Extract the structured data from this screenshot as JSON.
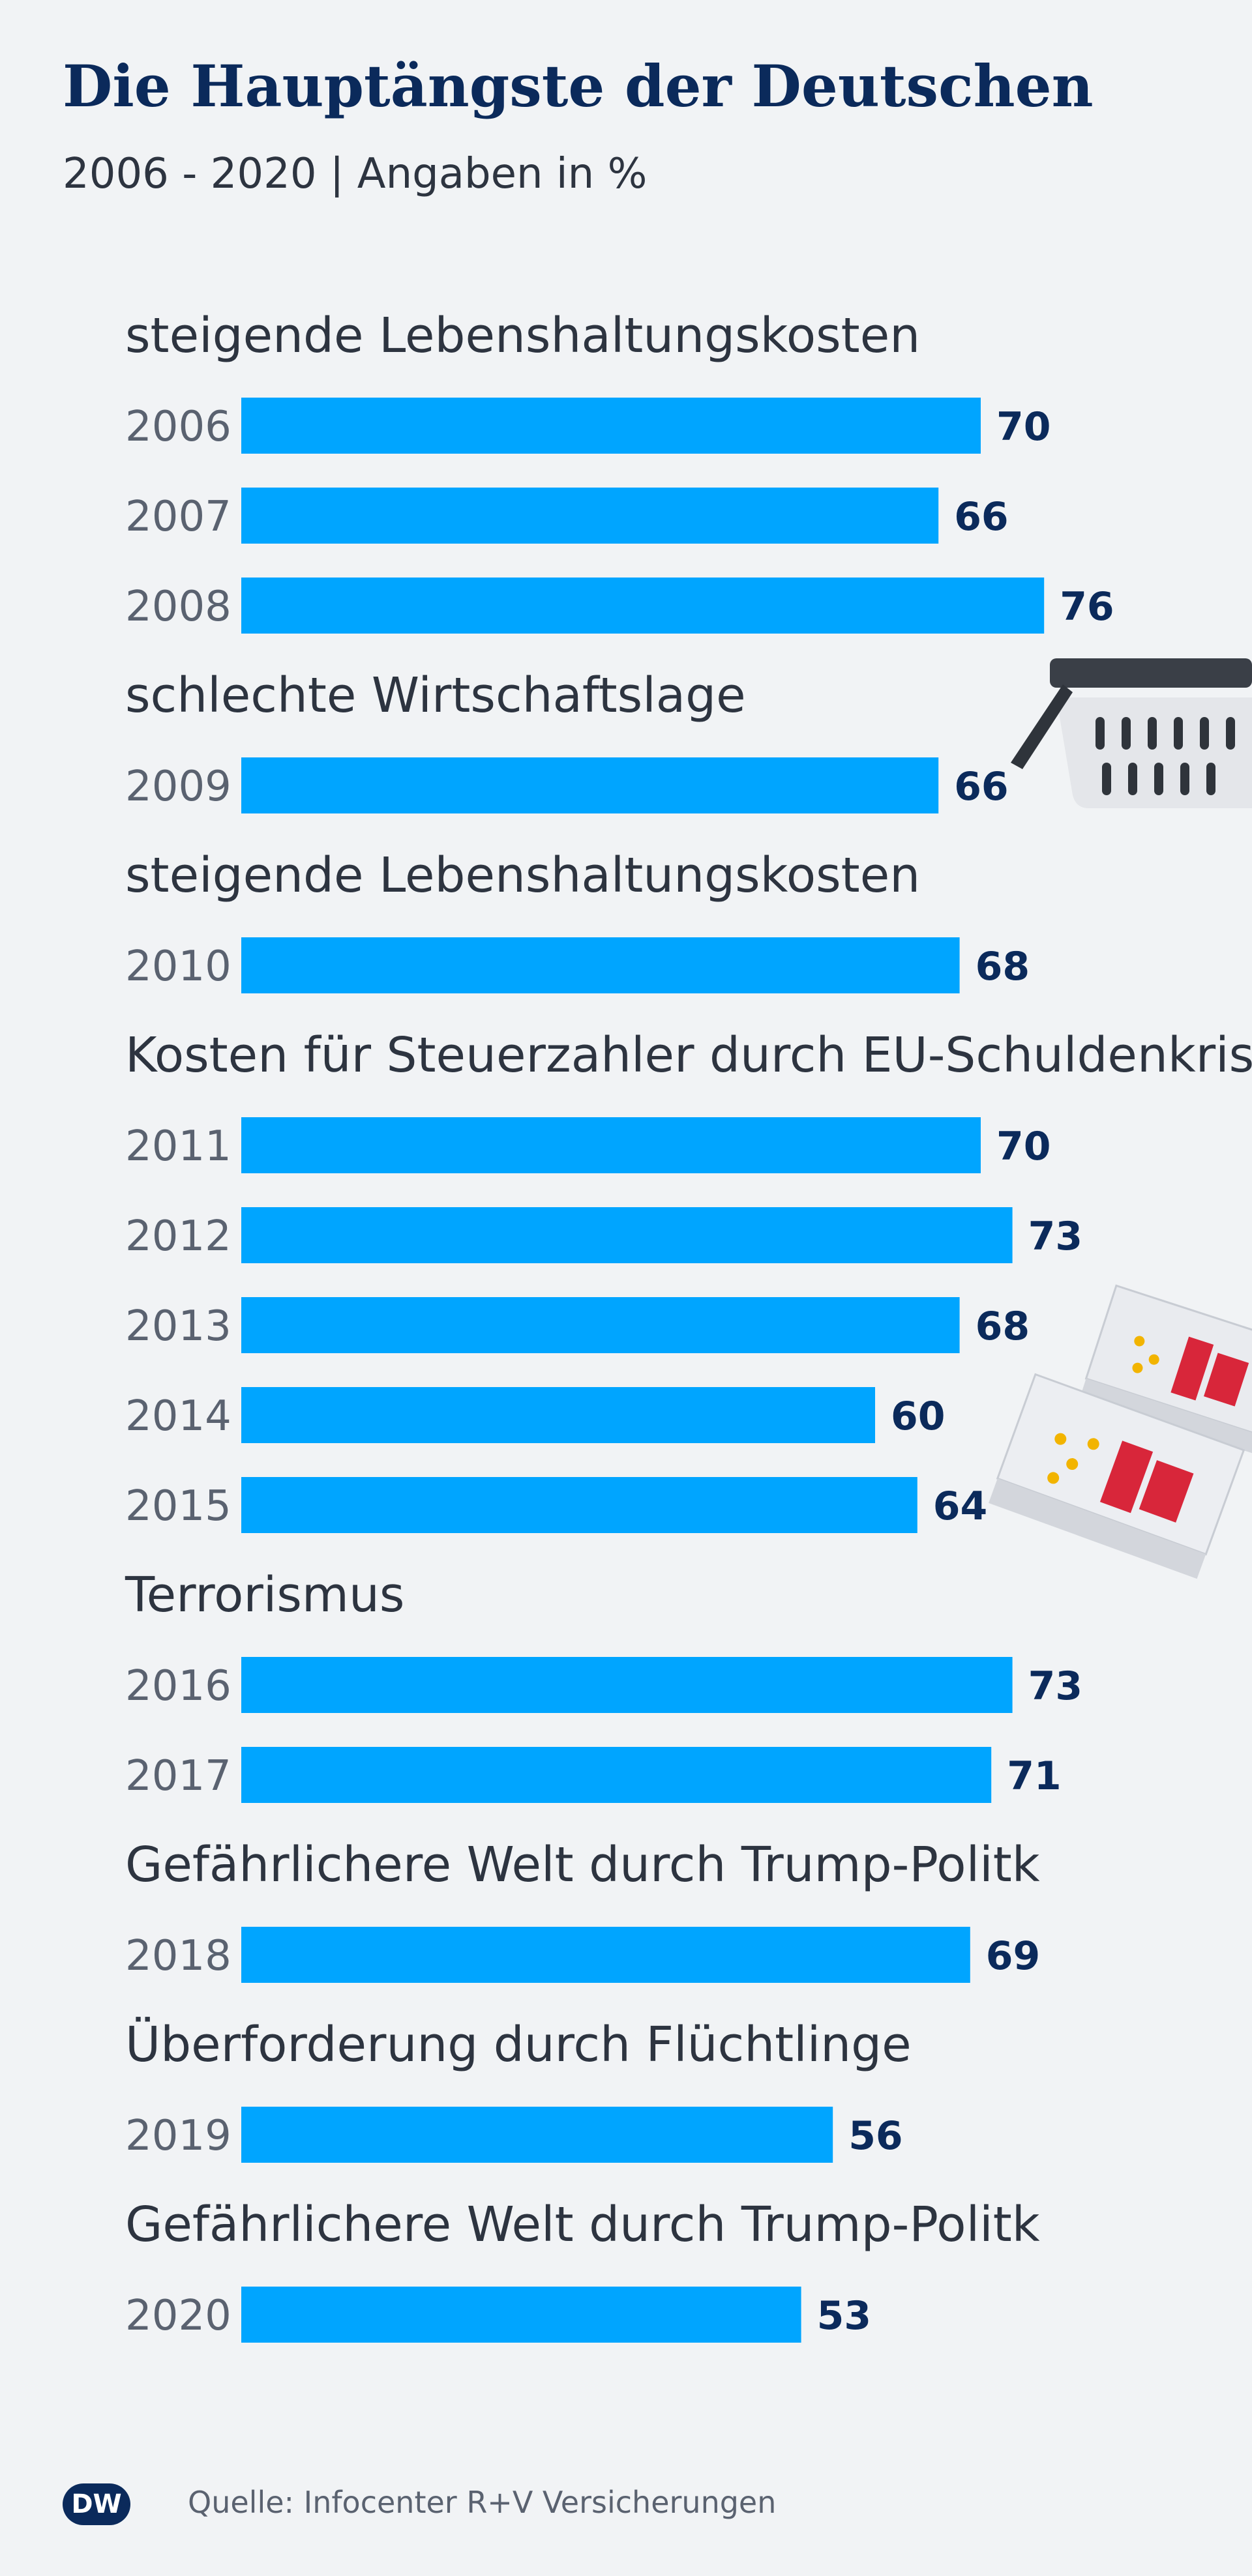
{
  "title": "Die Hauptängste der Deutschen",
  "subtitle": "2006 - 2020 | Angaben in %",
  "source": "Quelle: Infocenter R+V Versicherungen",
  "logo": "DW",
  "colors": {
    "bar": "#00a5ff",
    "title": "#0b2a5b",
    "background": "#f1f3f5"
  },
  "chart_data": {
    "type": "bar",
    "orientation": "horizontal",
    "title": "Die Hauptängste der Deutschen",
    "unit": "%",
    "xlim": [
      0,
      100
    ],
    "groups": [
      {
        "label": "steigende Lebenshaltungskosten",
        "rows": [
          {
            "year": "2006",
            "value": 70
          },
          {
            "year": "2007",
            "value": 66
          },
          {
            "year": "2008",
            "value": 76
          }
        ]
      },
      {
        "label": "schlechte Wirtschaftslage",
        "rows": [
          {
            "year": "2009",
            "value": 66
          }
        ]
      },
      {
        "label": "steigende Lebenshaltungskosten",
        "rows": [
          {
            "year": "2010",
            "value": 68
          }
        ]
      },
      {
        "label": "Kosten für Steuerzahler durch EU-Schuldenkrise",
        "rows": [
          {
            "year": "2011",
            "value": 70
          },
          {
            "year": "2012",
            "value": 73
          },
          {
            "year": "2013",
            "value": 68
          },
          {
            "year": "2014",
            "value": 60
          },
          {
            "year": "2015",
            "value": 64
          }
        ]
      },
      {
        "label": "Terrorismus",
        "rows": [
          {
            "year": "2016",
            "value": 73
          },
          {
            "year": "2017",
            "value": 71
          }
        ]
      },
      {
        "label": "Gefährlichere Welt durch Trump-Politk",
        "rows": [
          {
            "year": "2018",
            "value": 69
          }
        ]
      },
      {
        "label": "Überforderung durch Flüchtlinge",
        "rows": [
          {
            "year": "2019",
            "value": 56
          }
        ]
      },
      {
        "label": "Gefährlichere Welt durch Trump-Politk",
        "rows": [
          {
            "year": "2020",
            "value": 53
          }
        ]
      }
    ]
  }
}
